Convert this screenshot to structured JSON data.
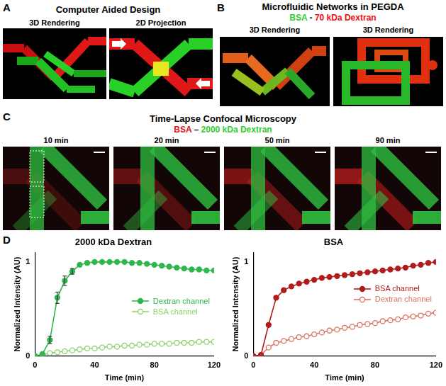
{
  "panels": [
    {
      "label": "A",
      "title": "Computer Aided Design",
      "images": [
        "3D Rendering",
        "2D Projection"
      ]
    },
    {
      "label": "B",
      "title": "Microfluidic Networks in PEGDA",
      "subtitle": [
        {
          "text": "BSA",
          "color": "#33cc33"
        },
        {
          "text": " - ",
          "color": "#000000"
        },
        {
          "text": "70 kDa Dextran",
          "color": "#ee1111"
        }
      ],
      "images": [
        "3D Rendering",
        "3D Rendering"
      ]
    },
    {
      "label": "C",
      "title": "Time-Lapse Confocal Microscopy",
      "subtitle": [
        {
          "text": "BSA",
          "color": "#dd1111"
        },
        {
          "text": " – ",
          "color": "#000000"
        },
        {
          "text": "2000 kDa Dextran",
          "color": "#33cc33"
        }
      ],
      "images": [
        "10 min",
        "20 min",
        "50 min",
        "90 min"
      ]
    },
    {
      "label": "D"
    }
  ],
  "chart_data": [
    {
      "type": "line",
      "title": "2000 kDa Dextran",
      "x_label": "Time (min)",
      "y_label": "Normalized Intensity (AU)",
      "x": [
        0,
        5,
        10,
        15,
        20,
        25,
        30,
        35,
        40,
        45,
        50,
        55,
        60,
        65,
        70,
        75,
        80,
        85,
        90,
        95,
        100,
        105,
        110,
        115,
        120
      ],
      "xlim": [
        0,
        120
      ],
      "xticks": [
        0,
        40,
        80,
        120
      ],
      "ylim": [
        0,
        1.1
      ],
      "yticks": [
        0,
        1
      ],
      "grid": false,
      "legend": "right",
      "series": [
        {
          "name": "Dextran channel",
          "color": "#2db84d",
          "marker": "circle",
          "values": [
            0,
            0.02,
            0.17,
            0.62,
            0.8,
            0.9,
            0.97,
            0.99,
            1.0,
            1.0,
            1.0,
            1.0,
            1.0,
            0.99,
            0.99,
            0.98,
            0.97,
            0.96,
            0.95,
            0.94,
            0.93,
            0.92,
            0.92,
            0.91,
            0.91
          ],
          "errors": [
            null,
            null,
            0.04,
            0.06,
            0.05,
            0.03,
            null,
            null,
            null,
            null,
            null,
            null,
            null,
            null,
            null,
            null,
            null,
            null,
            null,
            null,
            null,
            null,
            null,
            null,
            null
          ]
        },
        {
          "name": "BSA channel",
          "color": "#8cd36a",
          "marker": "open circle",
          "values": [
            0,
            0.01,
            0.03,
            0.04,
            0.05,
            0.06,
            0.07,
            0.08,
            0.08,
            0.09,
            0.1,
            0.1,
            0.11,
            0.11,
            0.12,
            0.12,
            0.13,
            0.13,
            0.13,
            0.14,
            0.14,
            0.14,
            0.15,
            0.15,
            0.15
          ]
        }
      ]
    },
    {
      "type": "line",
      "title": "BSA",
      "x_label": "Time (min)",
      "y_label": "Normalized Intensity (AU)",
      "x": [
        0,
        5,
        10,
        15,
        20,
        25,
        30,
        35,
        40,
        45,
        50,
        55,
        60,
        65,
        70,
        75,
        80,
        85,
        90,
        95,
        100,
        105,
        110,
        115,
        120
      ],
      "xlim": [
        0,
        120
      ],
      "xticks": [
        0,
        40,
        80,
        120
      ],
      "ylim": [
        0,
        1.1
      ],
      "yticks": [
        0,
        1
      ],
      "grid": false,
      "legend": "right",
      "series": [
        {
          "name": "BSA channel",
          "color": "#b01c1c",
          "marker": "circle",
          "values": [
            0,
            0.01,
            0.33,
            0.62,
            0.7,
            0.74,
            0.77,
            0.79,
            0.81,
            0.83,
            0.84,
            0.85,
            0.86,
            0.87,
            0.88,
            0.89,
            0.9,
            0.91,
            0.92,
            0.93,
            0.94,
            0.96,
            0.97,
            0.99,
            1.0
          ]
        },
        {
          "name": "Dextran channel",
          "color": "#d9735f",
          "marker": "open circle",
          "values": [
            0,
            0.01,
            0.09,
            0.14,
            0.16,
            0.18,
            0.2,
            0.21,
            0.23,
            0.25,
            0.27,
            0.28,
            0.3,
            0.31,
            0.33,
            0.34,
            0.35,
            0.37,
            0.38,
            0.39,
            0.41,
            0.42,
            0.43,
            0.45,
            0.46
          ]
        }
      ]
    }
  ]
}
